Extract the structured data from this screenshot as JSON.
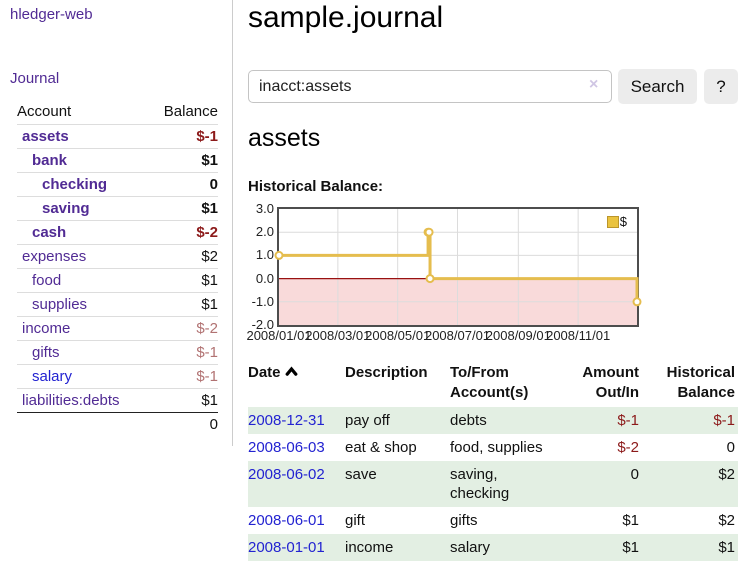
{
  "app_title": "hledger-web",
  "sidebar": {
    "journal_link": "Journal",
    "account_header": "Account",
    "balance_header": "Balance",
    "accounts": [
      {
        "name": "assets",
        "balance": "$-1",
        "indent": 1,
        "bold": true
      },
      {
        "name": "bank",
        "balance": "$1",
        "indent": 2,
        "bold": true
      },
      {
        "name": "checking",
        "balance": "0",
        "indent": 3,
        "bold": true
      },
      {
        "name": "saving",
        "balance": "$1",
        "indent": 3,
        "bold": true
      },
      {
        "name": "cash",
        "balance": "$-2",
        "indent": 2,
        "bold": true
      },
      {
        "name": "expenses",
        "balance": "$2",
        "indent": 1,
        "bold": false
      },
      {
        "name": "food",
        "balance": "$1",
        "indent": 2,
        "bold": false
      },
      {
        "name": "supplies",
        "balance": "$1",
        "indent": 2,
        "bold": false
      },
      {
        "name": "income",
        "balance": "$-2",
        "indent": 1,
        "bold": false
      },
      {
        "name": "gifts",
        "balance": "$-1",
        "indent": 2,
        "bold": false
      },
      {
        "name": "salary",
        "balance": "$-1",
        "indent": 2,
        "bold": false,
        "link_style": "blue"
      },
      {
        "name": "liabilities:debts",
        "balance": "$1",
        "indent": 1,
        "bold": false
      }
    ],
    "total": "0"
  },
  "header": {
    "title": "sample.journal"
  },
  "search": {
    "value": "inacct:assets",
    "clear_icon": "×",
    "search_button": "Search",
    "help_button": "?"
  },
  "account_page": {
    "heading": "assets",
    "chart_label": "Historical Balance:"
  },
  "chart_data": {
    "type": "line",
    "step": true,
    "title": "Historical Balance",
    "series": [
      {
        "name": "$",
        "color": "#e5bd4e",
        "points": [
          [
            "2008-01-01",
            1
          ],
          [
            "2008-06-01",
            2
          ],
          [
            "2008-06-02",
            2
          ],
          [
            "2008-06-03",
            0
          ],
          [
            "2008-12-31",
            -1
          ]
        ]
      }
    ],
    "x_range": [
      "2008-01-01",
      "2008-12-31"
    ],
    "ylim": [
      -2,
      3
    ],
    "yticks": [
      "3.0",
      "2.0",
      "1.0",
      "0.0",
      "-1.0",
      "-2.0"
    ],
    "xticks": [
      {
        "label": "2008/01/01",
        "date": "2008-01-01"
      },
      {
        "label": "2008/03/01",
        "date": "2008-03-01"
      },
      {
        "label": "2008/05/01",
        "date": "2008-05-01"
      },
      {
        "label": "2008/07/01",
        "date": "2008-07-01"
      },
      {
        "label": "2008/09/01",
        "date": "2008-09-01"
      },
      {
        "label": "2008/11/01",
        "date": "2008-11-01"
      }
    ],
    "legend": [
      {
        "label": "$",
        "color": "#eac33f"
      }
    ],
    "legend_position": "top-right",
    "grid": true,
    "negative_area_color": "#f9dada",
    "zero_line_color": "#991111",
    "grid_color": "#dcdcdc"
  },
  "register": {
    "headers": {
      "date": "Date",
      "sort_icon": "chevron-up",
      "description": "Description",
      "accounts": "To/From Account(s)",
      "amount": "Amount Out/In",
      "balance": "Historical Balance"
    },
    "rows": [
      {
        "date": "2008-12-31",
        "description": "pay off",
        "accounts": "debts",
        "amount": "$-1",
        "balance": "$-1"
      },
      {
        "date": "2008-06-03",
        "description": "eat & shop",
        "accounts": "food, supplies",
        "amount": "$-2",
        "balance": "0"
      },
      {
        "date": "2008-06-02",
        "description": "save",
        "accounts": "saving, checking",
        "amount": "0",
        "balance": "$2"
      },
      {
        "date": "2008-06-01",
        "description": "gift",
        "accounts": "gifts",
        "amount": "$1",
        "balance": "$2"
      },
      {
        "date": "2008-01-01",
        "description": "income",
        "accounts": "salary",
        "amount": "$1",
        "balance": "$1"
      }
    ]
  }
}
